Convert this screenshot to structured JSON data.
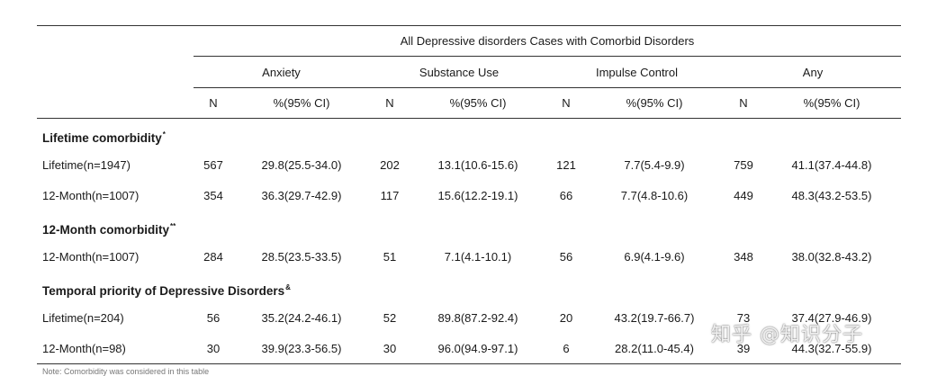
{
  "table": {
    "main_header": "All Depressive disorders Cases with Comorbid Disorders",
    "groups": [
      "Anxiety",
      "Substance Use",
      "Impulse Control",
      "Any"
    ],
    "subheaders": [
      "N",
      "%(95% CI)",
      "N",
      "%(95% CI)",
      "N",
      "%(95% CI)",
      "N",
      "%(95% CI)"
    ],
    "sections": [
      {
        "title": "Lifetime comorbidity",
        "marker": "*",
        "rows": [
          {
            "label": "Lifetime(n=1947)",
            "cells": [
              "567",
              "29.8(25.5-34.0)",
              "202",
              "13.1(10.6-15.6)",
              "121",
              "7.7(5.4-9.9)",
              "759",
              "41.1(37.4-44.8)"
            ]
          },
          {
            "label": "12-Month(n=1007)",
            "cells": [
              "354",
              "36.3(29.7-42.9)",
              "117",
              "15.6(12.2-19.1)",
              "66",
              "7.7(4.8-10.6)",
              "449",
              "48.3(43.2-53.5)"
            ]
          }
        ]
      },
      {
        "title": "12-Month comorbidity",
        "marker": "**",
        "rows": [
          {
            "label": "12-Month(n=1007)",
            "cells": [
              "284",
              "28.5(23.5-33.5)",
              "51",
              "7.1(4.1-10.1)",
              "56",
              "6.9(4.1-9.6)",
              "348",
              "38.0(32.8-43.2)"
            ]
          }
        ]
      },
      {
        "title": "Temporal priority of Depressive Disorders",
        "marker": "&",
        "rows": [
          {
            "label": "Lifetime(n=204)",
            "cells": [
              "56",
              "35.2(24.2-46.1)",
              "52",
              "89.8(87.2-92.4)",
              "20",
              "43.2(19.7-66.7)",
              "73",
              "37.4(27.9-46.9)"
            ]
          },
          {
            "label": "12-Month(n=98)",
            "cells": [
              "30",
              "39.9(23.3-56.5)",
              "30",
              "96.0(94.9-97.1)",
              "6",
              "28.2(11.0-45.4)",
              "39",
              "44.3(32.7-55.9)"
            ]
          }
        ]
      }
    ]
  },
  "watermark": "知乎 @知识分子",
  "footnote": "Note: Comorbidity was considered in this table"
}
